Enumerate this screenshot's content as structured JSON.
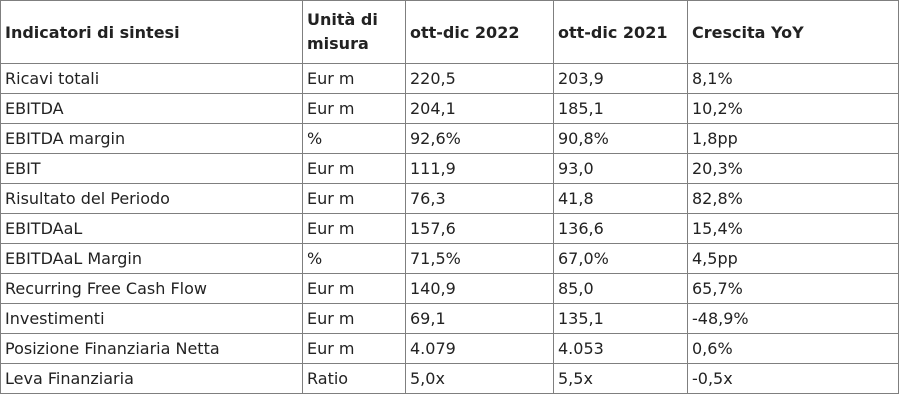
{
  "table": {
    "headers": [
      "Indicatori di sintesi",
      "Unità di misura",
      "ott-dic 2022",
      "ott-dic 2021",
      "Crescita YoY"
    ],
    "rows": [
      [
        "Ricavi totali",
        "Eur m",
        "220,5",
        "203,9",
        "8,1%"
      ],
      [
        "EBITDA",
        "Eur m",
        "204,1",
        "185,1",
        "10,2%"
      ],
      [
        "EBITDA margin",
        "%",
        "92,6%",
        "90,8%",
        "1,8pp"
      ],
      [
        "EBIT",
        "Eur m",
        "111,9",
        "93,0",
        "20,3%"
      ],
      [
        "Risultato del Periodo",
        "Eur m",
        "76,3",
        "41,8",
        "82,8%"
      ],
      [
        "EBITDAaL",
        "Eur m",
        "157,6",
        "136,6",
        "15,4%"
      ],
      [
        "EBITDAaL Margin",
        "%",
        "71,5%",
        "67,0%",
        "4,5pp"
      ],
      [
        "Recurring Free Cash Flow",
        "Eur m",
        "140,9",
        "85,0",
        "65,7%"
      ],
      [
        "Investimenti",
        "Eur m",
        "69,1",
        "135,1",
        "-48,9%"
      ],
      [
        "Posizione Finanziaria Netta",
        "Eur m",
        "4.079",
        "4.053",
        "0,6%"
      ],
      [
        "Leva Finanziaria",
        "Ratio",
        "5,0x",
        "5,5x",
        "-0,5x"
      ]
    ]
  }
}
